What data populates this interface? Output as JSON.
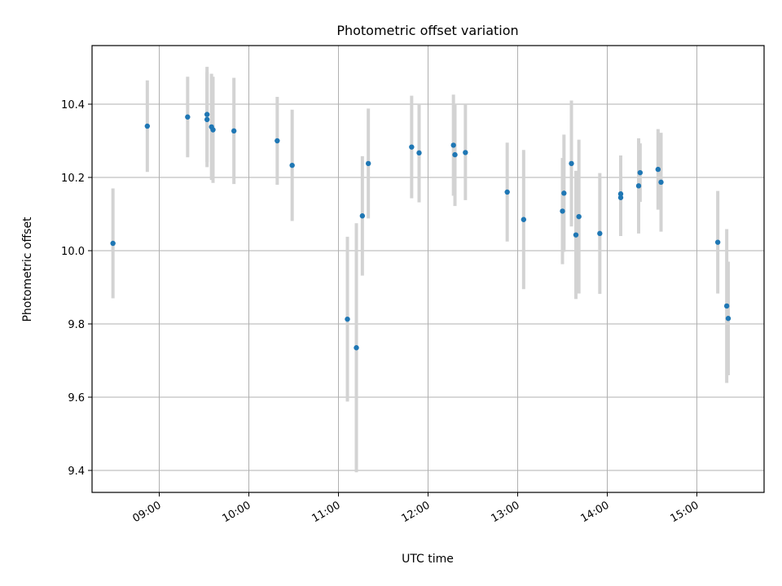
{
  "chart_data": {
    "type": "scatter",
    "title": "Photometric offset variation",
    "xlabel": "UTC time",
    "ylabel": "Photometric offset",
    "x_tick_labels": [
      "09:00",
      "10:00",
      "11:00",
      "12:00",
      "13:00",
      "14:00",
      "15:00"
    ],
    "y_ticks": [
      9.4,
      9.6,
      9.8,
      10.0,
      10.2,
      10.4
    ],
    "y_tick_labels": [
      "9.4",
      "9.6",
      "9.8",
      "10.0",
      "10.2",
      "10.4"
    ],
    "xlim": [
      "08:15",
      "15:45"
    ],
    "ylim": [
      9.34,
      10.56
    ],
    "grid": true,
    "marker_color": "#1f77b4",
    "errorbar_color": "#d3d3d3",
    "points": [
      {
        "time": "08:29",
        "y": 10.02,
        "err": 0.15
      },
      {
        "time": "08:52",
        "y": 10.34,
        "err": 0.125
      },
      {
        "time": "09:19",
        "y": 10.365,
        "err": 0.11
      },
      {
        "time": "09:32",
        "y": 10.372,
        "err": 0.13
      },
      {
        "time": "09:32",
        "y": 10.358,
        "err": 0.13
      },
      {
        "time": "09:35",
        "y": 10.338,
        "err": 0.145
      },
      {
        "time": "09:36",
        "y": 10.33,
        "err": 0.145
      },
      {
        "time": "09:50",
        "y": 10.327,
        "err": 0.145
      },
      {
        "time": "10:19",
        "y": 10.3,
        "err": 0.12
      },
      {
        "time": "10:29",
        "y": 10.233,
        "err": 0.152
      },
      {
        "time": "11:06",
        "y": 9.813,
        "err": 0.225
      },
      {
        "time": "11:12",
        "y": 9.735,
        "err": 0.34
      },
      {
        "time": "11:16",
        "y": 10.095,
        "err": 0.163
      },
      {
        "time": "11:20",
        "y": 10.238,
        "err": 0.15
      },
      {
        "time": "11:49",
        "y": 10.283,
        "err": 0.14
      },
      {
        "time": "11:54",
        "y": 10.267,
        "err": 0.135
      },
      {
        "time": "12:17",
        "y": 10.288,
        "err": 0.138
      },
      {
        "time": "12:18",
        "y": 10.262,
        "err": 0.14
      },
      {
        "time": "12:25",
        "y": 10.268,
        "err": 0.13
      },
      {
        "time": "12:53",
        "y": 10.16,
        "err": 0.135
      },
      {
        "time": "13:04",
        "y": 10.085,
        "err": 0.19
      },
      {
        "time": "13:30",
        "y": 10.108,
        "err": 0.145
      },
      {
        "time": "13:31",
        "y": 10.157,
        "err": 0.16
      },
      {
        "time": "13:36",
        "y": 10.238,
        "err": 0.172
      },
      {
        "time": "13:39",
        "y": 10.043,
        "err": 0.175
      },
      {
        "time": "13:41",
        "y": 10.093,
        "err": 0.21
      },
      {
        "time": "13:55",
        "y": 10.047,
        "err": 0.165
      },
      {
        "time": "14:09",
        "y": 10.145,
        "err": 0.105
      },
      {
        "time": "14:09",
        "y": 10.155,
        "err": 0.105
      },
      {
        "time": "14:21",
        "y": 10.177,
        "err": 0.13
      },
      {
        "time": "14:22",
        "y": 10.213,
        "err": 0.08
      },
      {
        "time": "14:34",
        "y": 10.222,
        "err": 0.11
      },
      {
        "time": "14:36",
        "y": 10.187,
        "err": 0.135
      },
      {
        "time": "15:14",
        "y": 10.023,
        "err": 0.14
      },
      {
        "time": "15:20",
        "y": 9.849,
        "err": 0.21
      },
      {
        "time": "15:21",
        "y": 9.815,
        "err": 0.155
      }
    ]
  }
}
